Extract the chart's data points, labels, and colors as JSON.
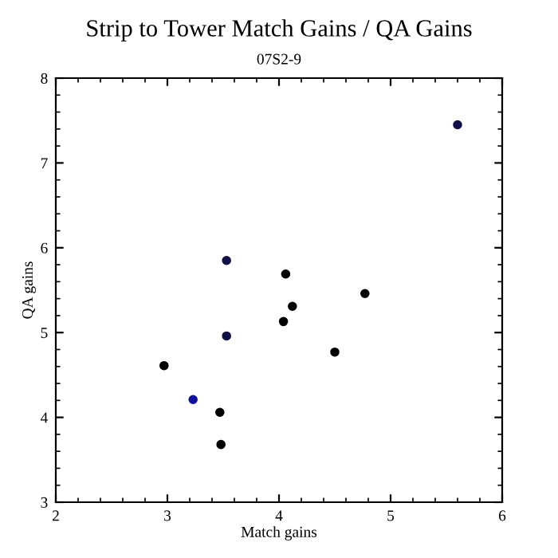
{
  "chart_data": {
    "type": "scatter",
    "title": "Strip to Tower Match Gains / QA Gains",
    "subtitle": "07S2-9",
    "xlabel": "Match gains",
    "ylabel": "QA gains",
    "x": [
      5.6,
      3.53,
      4.06,
      4.77,
      4.12,
      4.04,
      3.53,
      4.5,
      2.97,
      3.23,
      3.47,
      3.48
    ],
    "values": [
      7.45,
      5.85,
      5.69,
      5.46,
      5.31,
      5.13,
      4.96,
      4.77,
      4.61,
      4.21,
      4.06,
      3.68
    ],
    "colors": [
      "#10104a",
      "#10104a",
      "#000000",
      "#000000",
      "#000000",
      "#000000",
      "#10104a",
      "#000000",
      "#000000",
      "#1010a0",
      "#000000",
      "#000000"
    ],
    "marker": "circle",
    "xlim": [
      2,
      6
    ],
    "ylim": [
      3,
      8
    ],
    "xticks": [
      2,
      3,
      4,
      5,
      6
    ],
    "yticks": [
      3,
      4,
      5,
      6,
      7,
      8
    ],
    "grid": false,
    "legend": false
  }
}
